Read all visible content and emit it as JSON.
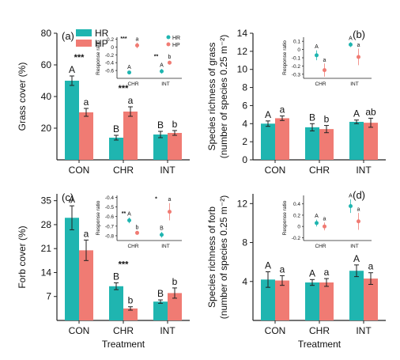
{
  "colors": {
    "HR": "#1fb5b0",
    "HP": "#f07b73",
    "axis": "#222222"
  },
  "legend": {
    "HR": "HR",
    "HP": "HP"
  },
  "shared_xlabel": "Treatment",
  "chart_data": [
    {
      "panel": "(a)",
      "type": "bar",
      "ylabel": "Grass cover (%)",
      "ylim": [
        0,
        80
      ],
      "yticks": [
        20,
        40,
        60,
        80
      ],
      "categories": [
        "CON",
        "CHR",
        "INT"
      ],
      "series": [
        {
          "name": "HR",
          "values": [
            50,
            14,
            16
          ],
          "errors": [
            3,
            1.5,
            2
          ],
          "letters": [
            "A",
            "B",
            "B"
          ]
        },
        {
          "name": "HP",
          "values": [
            30,
            30.5,
            17
          ],
          "errors": [
            2.5,
            3,
            1.5
          ],
          "letters": [
            "a",
            "a",
            "b"
          ]
        }
      ],
      "stars": [
        "***",
        "***",
        ""
      ],
      "inset": {
        "ylabel": "Response ratio",
        "ylim": [
          -0.8,
          0.25
        ],
        "yticks": [
          -0.6,
          -0.4,
          -0.2,
          0,
          0.2
        ],
        "categories": [
          "CHR",
          "INT"
        ],
        "series": [
          {
            "name": "HR",
            "values": [
              -0.65,
              -0.62
            ],
            "errors": [
              0.04,
              0.06
            ],
            "letters": [
              "A",
              "A"
            ]
          },
          {
            "name": "HP",
            "values": [
              0.04,
              -0.4
            ],
            "errors": [
              0.07,
              0.05
            ],
            "letters": [
              "a",
              "b"
            ]
          }
        ],
        "stars": [
          "***",
          "**"
        ]
      }
    },
    {
      "panel": "(b)",
      "type": "bar",
      "ylabel": "Species richness of grass\n(number of species 0.25 m⁻²)",
      "ylim": [
        0,
        14
      ],
      "yticks": [
        0,
        2,
        4,
        6,
        8,
        10,
        12,
        14
      ],
      "categories": [
        "CON",
        "CHR",
        "INT"
      ],
      "series": [
        {
          "name": "HR",
          "values": [
            4,
            3.6,
            4.2
          ],
          "errors": [
            0.3,
            0.4,
            0.2
          ],
          "letters": [
            "A",
            "B",
            "A"
          ]
        },
        {
          "name": "HP",
          "values": [
            4.6,
            3.4,
            4.1
          ],
          "errors": [
            0.25,
            0.4,
            0.5
          ],
          "letters": [
            "a",
            "b",
            "ab"
          ]
        }
      ],
      "stars": [
        "",
        "",
        ""
      ],
      "inset": {
        "ylabel": "Response ratio",
        "ylim": [
          -0.35,
          0.15
        ],
        "yticks": [
          -0.3,
          -0.2,
          -0.1,
          0,
          0.1
        ],
        "categories": [
          "CHR",
          "INT"
        ],
        "series": [
          {
            "name": "HR",
            "values": [
              -0.07,
              0.06
            ],
            "errors": [
              0.06,
              0.03
            ],
            "letters": [
              "A",
              "A"
            ]
          },
          {
            "name": "HP",
            "values": [
              -0.25,
              -0.09
            ],
            "errors": [
              0.08,
              0.1
            ],
            "letters": [
              "a",
              "a"
            ]
          }
        ],
        "stars": [
          "",
          ""
        ]
      }
    },
    {
      "panel": "(c)",
      "type": "bar",
      "ylabel": "Forb cover (%)",
      "ylim": [
        0,
        37
      ],
      "yticks": [
        7,
        14,
        21,
        28,
        35
      ],
      "categories": [
        "CON",
        "CHR",
        "INT"
      ],
      "series": [
        {
          "name": "HR",
          "values": [
            30,
            10,
            5.5
          ],
          "errors": [
            3.5,
            1,
            0.5
          ],
          "letters": [
            "A",
            "B",
            "B"
          ]
        },
        {
          "name": "HP",
          "values": [
            20.5,
            3.5,
            8
          ],
          "errors": [
            3,
            0.5,
            1.5
          ],
          "letters": [
            "a",
            "b",
            "b"
          ]
        }
      ],
      "stars": [
        "",
        "***",
        ""
      ],
      "inset": {
        "ylabel": "Response ratio",
        "ylim": [
          -0.85,
          -0.38
        ],
        "yticks": [
          -0.8,
          -0.7,
          -0.6,
          -0.5,
          -0.4
        ],
        "categories": [
          "CHR",
          "INT"
        ],
        "series": [
          {
            "name": "HR",
            "values": [
              -0.64,
              -0.79
            ],
            "errors": [
              0.03,
              0.03
            ],
            "letters": [
              "A",
              "B"
            ]
          },
          {
            "name": "HP",
            "values": [
              -0.77,
              -0.55
            ],
            "errors": [
              0.02,
              0.09
            ],
            "letters": [
              "b",
              "a"
            ]
          }
        ],
        "stars": [
          "**",
          "*"
        ]
      }
    },
    {
      "panel": "(d)",
      "type": "bar",
      "ylabel": "Species richness of forb\n(number of species 0.25 m⁻²)",
      "ylim": [
        0,
        13
      ],
      "yticks": [
        4,
        8,
        12
      ],
      "categories": [
        "CON",
        "CHR",
        "INT"
      ],
      "series": [
        {
          "name": "HR",
          "values": [
            4.2,
            3.9,
            5.1
          ],
          "errors": [
            0.8,
            0.3,
            0.6
          ],
          "letters": [
            "A",
            "A",
            "A"
          ]
        },
        {
          "name": "HP",
          "values": [
            4.1,
            3.9,
            4.3
          ],
          "errors": [
            0.5,
            0.4,
            0.6
          ],
          "letters": [
            "a",
            "a",
            "a"
          ]
        }
      ],
      "stars": [
        "",
        "",
        ""
      ],
      "inset": {
        "ylabel": "Response ratio",
        "ylim": [
          -0.25,
          0.55
        ],
        "yticks": [
          -0.2,
          0,
          0.2,
          0.4
        ],
        "categories": [
          "CHR",
          "INT"
        ],
        "series": [
          {
            "name": "HR",
            "values": [
              0.06,
              0.36
            ],
            "errors": [
              0.06,
              0.12
            ],
            "letters": [
              "A",
              "A"
            ]
          },
          {
            "name": "HP",
            "values": [
              0,
              0.09
            ],
            "errors": [
              0.07,
              0.15
            ],
            "letters": [
              "a",
              "a"
            ]
          }
        ],
        "stars": [
          "",
          ""
        ]
      }
    }
  ]
}
